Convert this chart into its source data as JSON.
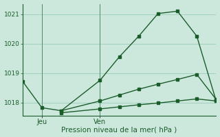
{
  "xlabel": "Pression niveau de la mer( hPa )",
  "bg_color": "#cce8dc",
  "grid_color": "#a0cfc0",
  "line_color": "#1a5c2a",
  "ylim": [
    1017.55,
    1021.35
  ],
  "yticks": [
    1018,
    1019,
    1020,
    1021
  ],
  "xlim": [
    0,
    10
  ],
  "x_jeu": 1,
  "x_ven": 4,
  "line1_x": [
    0,
    1,
    2,
    4,
    5,
    6,
    7,
    8,
    9,
    10
  ],
  "line1_y": [
    1018.72,
    1017.82,
    1017.72,
    1018.75,
    1019.55,
    1020.25,
    1021.02,
    1021.1,
    1020.25,
    1018.05
  ],
  "line2_x": [
    2,
    4,
    5,
    6,
    7,
    8,
    9,
    10
  ],
  "line2_y": [
    1017.72,
    1018.05,
    1018.25,
    1018.45,
    1018.62,
    1018.78,
    1018.95,
    1018.1
  ],
  "line3_x": [
    2,
    4,
    5,
    6,
    7,
    8,
    9,
    10
  ],
  "line3_y": [
    1017.65,
    1017.78,
    1017.85,
    1017.92,
    1017.98,
    1018.05,
    1018.12,
    1018.05
  ],
  "figsize": [
    3.2,
    2.0
  ],
  "dpi": 100
}
